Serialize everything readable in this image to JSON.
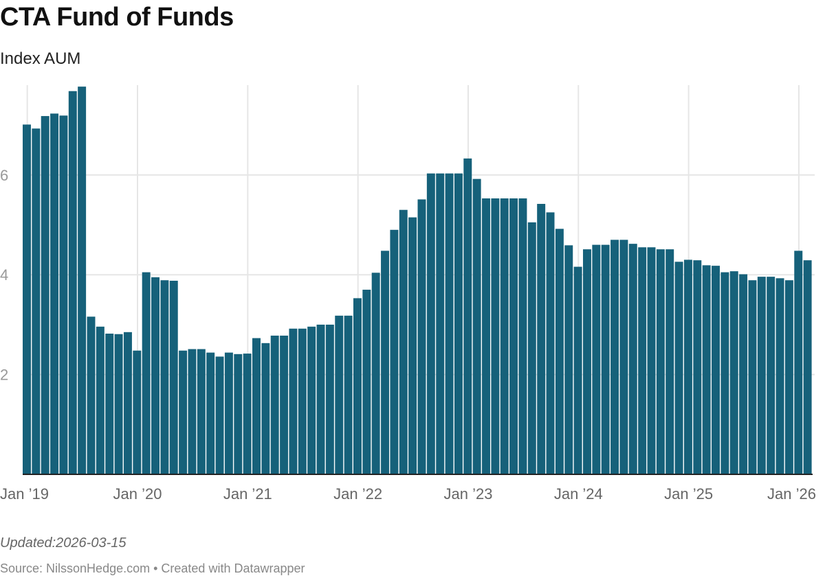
{
  "title": "CTA Fund of Funds",
  "subtitle": "Index AUM",
  "updated": "Updated:2026-03-15",
  "source": "Source: NilssonHedge.com • Created with Datawrapper",
  "colors": {
    "bar": "#16617a",
    "grid": "#e6e6e6",
    "tick": "#999999",
    "baseline": "#222222"
  },
  "chart_data": {
    "type": "bar",
    "title": "CTA Fund of Funds",
    "subtitle": "Index AUM",
    "ylim": [
      0,
      7.8
    ],
    "yticks": [
      2,
      4,
      6
    ],
    "grid": true,
    "xtick_labels": [
      "Jan ’19",
      "Jan ’20",
      "Jan ’21",
      "Jan ’22",
      "Jan ’23",
      "Jan ’24",
      "Jan ’25",
      "Jan ’26"
    ],
    "start": "2019-01",
    "frequency": "monthly",
    "values": [
      7.01,
      6.93,
      7.18,
      7.23,
      7.19,
      7.68,
      7.77,
      3.16,
      2.96,
      2.82,
      2.81,
      2.85,
      2.48,
      4.05,
      3.95,
      3.89,
      3.88,
      2.48,
      2.51,
      2.51,
      2.44,
      2.36,
      2.44,
      2.41,
      2.42,
      2.73,
      2.63,
      2.78,
      2.78,
      2.92,
      2.92,
      2.96,
      3.0,
      3.0,
      3.18,
      3.18,
      3.53,
      3.7,
      4.04,
      4.48,
      4.9,
      5.3,
      5.15,
      5.51,
      6.03,
      6.03,
      6.03,
      6.03,
      6.33,
      5.92,
      5.53,
      5.53,
      5.53,
      5.53,
      5.53,
      5.05,
      5.42,
      5.25,
      4.92,
      4.59,
      4.16,
      4.51,
      4.6,
      4.6,
      4.7,
      4.7,
      4.62,
      4.55,
      4.55,
      4.51,
      4.51,
      4.26,
      4.3,
      4.29,
      4.19,
      4.18,
      4.05,
      4.07,
      4.01,
      3.89,
      3.96,
      3.96,
      3.93,
      3.89,
      4.48,
      4.29
    ]
  }
}
